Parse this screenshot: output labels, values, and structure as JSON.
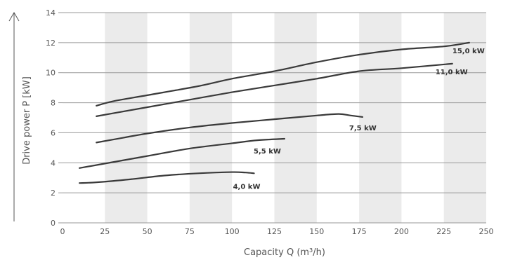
{
  "chart_data": {
    "type": "line",
    "xlabel": "Capacity Q (m³/h)",
    "ylabel": "Drive power P [kW]",
    "xlim": [
      0,
      250
    ],
    "ylim": [
      0,
      14
    ],
    "x_ticks": [
      "0",
      "25",
      "50",
      "75",
      "100",
      "125",
      "150",
      "175",
      "200",
      "225",
      "250"
    ],
    "y_ticks": [
      "0",
      "2",
      "4",
      "6",
      "8",
      "10",
      "12",
      "14"
    ],
    "grid": "horizontal",
    "alternating_bands": true,
    "colors": {
      "line": "#3a3a3a",
      "band": "#ebebeb",
      "grid": "#9a9a9a",
      "text": "#555555"
    },
    "series": [
      {
        "name": "15,0 kW",
        "points": [
          [
            20,
            7.8
          ],
          [
            30,
            8.1
          ],
          [
            50,
            8.5
          ],
          [
            80,
            9.1
          ],
          [
            100,
            9.6
          ],
          [
            125,
            10.1
          ],
          [
            150,
            10.7
          ],
          [
            175,
            11.2
          ],
          [
            200,
            11.55
          ],
          [
            225,
            11.75
          ],
          [
            240,
            12.0
          ]
        ]
      },
      {
        "name": "11,0 kW",
        "points": [
          [
            20,
            7.1
          ],
          [
            30,
            7.3
          ],
          [
            50,
            7.7
          ],
          [
            75,
            8.2
          ],
          [
            100,
            8.7
          ],
          [
            125,
            9.15
          ],
          [
            150,
            9.6
          ],
          [
            175,
            10.1
          ],
          [
            200,
            10.3
          ],
          [
            230,
            10.6
          ]
        ]
      },
      {
        "name": "7,5 kW",
        "points": [
          [
            20,
            5.35
          ],
          [
            30,
            5.55
          ],
          [
            50,
            5.95
          ],
          [
            75,
            6.35
          ],
          [
            100,
            6.65
          ],
          [
            125,
            6.9
          ],
          [
            150,
            7.15
          ],
          [
            163,
            7.25
          ],
          [
            170,
            7.15
          ],
          [
            177,
            7.05
          ]
        ]
      },
      {
        "name": "5,5 kW",
        "points": [
          [
            10,
            3.65
          ],
          [
            25,
            3.95
          ],
          [
            50,
            4.45
          ],
          [
            75,
            4.95
          ],
          [
            100,
            5.3
          ],
          [
            115,
            5.5
          ],
          [
            131,
            5.6
          ]
        ]
      },
      {
        "name": "4,0 kW",
        "points": [
          [
            10,
            2.65
          ],
          [
            20,
            2.7
          ],
          [
            40,
            2.9
          ],
          [
            60,
            3.15
          ],
          [
            80,
            3.3
          ],
          [
            100,
            3.38
          ],
          [
            108,
            3.35
          ],
          [
            113,
            3.3
          ]
        ]
      }
    ]
  }
}
